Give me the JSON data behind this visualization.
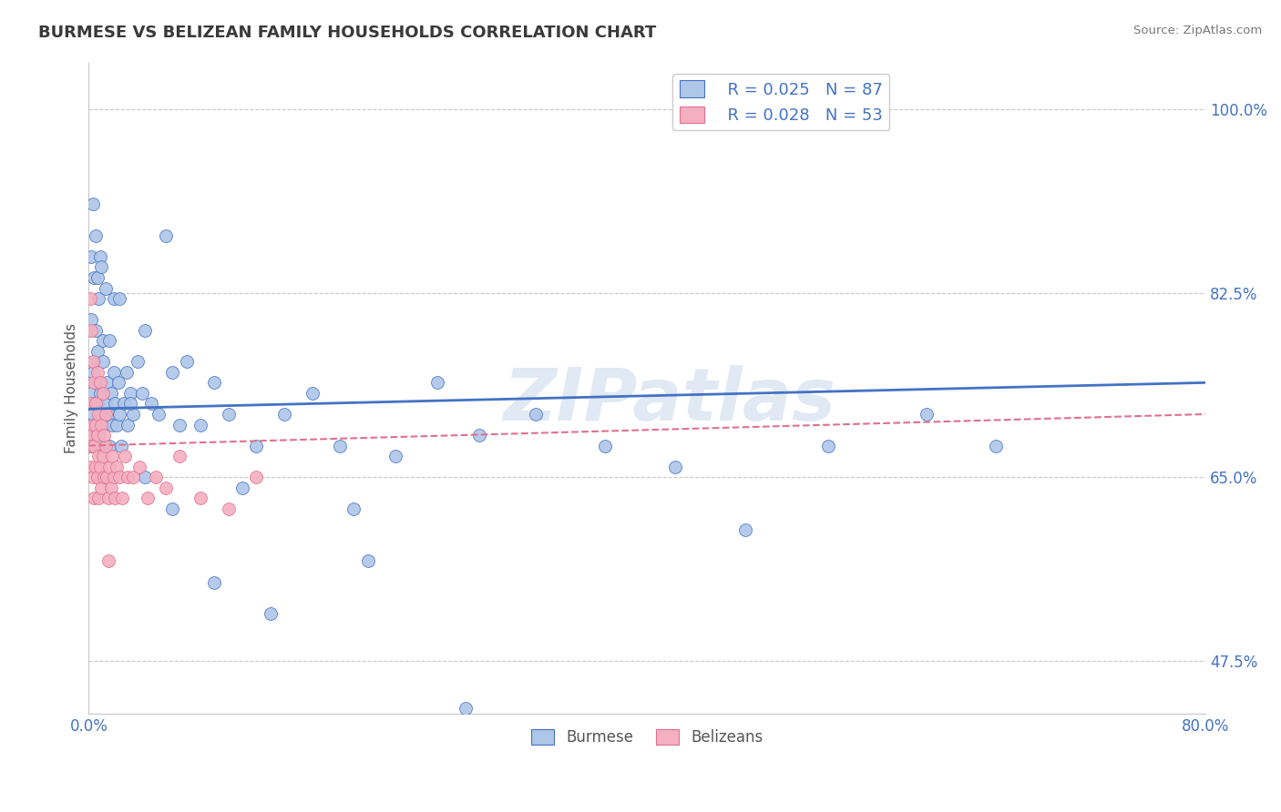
{
  "title": "BURMESE VS BELIZEAN FAMILY HOUSEHOLDS CORRELATION CHART",
  "source": "Source: ZipAtlas.com",
  "ylabel": "Family Households",
  "xlim": [
    0.0,
    0.8
  ],
  "ylim": [
    0.425,
    1.045
  ],
  "ytick_labels": [
    "47.5%",
    "65.0%",
    "82.5%",
    "100.0%"
  ],
  "yticks": [
    0.475,
    0.65,
    0.825,
    1.0
  ],
  "legend_R_burmese": "R = 0.025",
  "legend_N_burmese": "N = 87",
  "legend_R_belizean": "R = 0.028",
  "legend_N_belizean": "N = 53",
  "burmese_color": "#aec6e8",
  "belizean_color": "#f4afc0",
  "trendline_burmese_color": "#4472c4",
  "trendline_belizean_color": "#e07090",
  "watermark": "ZIPatlas",
  "burmese_x": [
    0.001,
    0.001,
    0.002,
    0.002,
    0.003,
    0.003,
    0.003,
    0.004,
    0.004,
    0.005,
    0.005,
    0.005,
    0.006,
    0.006,
    0.007,
    0.007,
    0.008,
    0.008,
    0.009,
    0.01,
    0.01,
    0.011,
    0.012,
    0.013,
    0.014,
    0.015,
    0.016,
    0.017,
    0.018,
    0.019,
    0.02,
    0.021,
    0.022,
    0.023,
    0.025,
    0.027,
    0.028,
    0.03,
    0.032,
    0.035,
    0.038,
    0.04,
    0.045,
    0.05,
    0.055,
    0.06,
    0.065,
    0.07,
    0.08,
    0.09,
    0.1,
    0.11,
    0.12,
    0.14,
    0.16,
    0.18,
    0.2,
    0.22,
    0.25,
    0.28,
    0.32,
    0.37,
    0.42,
    0.47,
    0.53,
    0.6,
    0.65,
    0.002,
    0.003,
    0.004,
    0.005,
    0.006,
    0.007,
    0.008,
    0.009,
    0.01,
    0.012,
    0.015,
    0.018,
    0.022,
    0.03,
    0.04,
    0.06,
    0.09,
    0.13,
    0.19,
    0.27
  ],
  "burmese_y": [
    0.7,
    0.68,
    0.73,
    0.8,
    0.75,
    0.71,
    0.68,
    0.76,
    0.72,
    0.79,
    0.74,
    0.69,
    0.77,
    0.72,
    0.74,
    0.69,
    0.73,
    0.68,
    0.71,
    0.78,
    0.73,
    0.7,
    0.72,
    0.74,
    0.71,
    0.68,
    0.73,
    0.7,
    0.75,
    0.72,
    0.7,
    0.74,
    0.71,
    0.68,
    0.72,
    0.75,
    0.7,
    0.73,
    0.71,
    0.76,
    0.73,
    0.79,
    0.72,
    0.71,
    0.88,
    0.75,
    0.7,
    0.76,
    0.7,
    0.74,
    0.71,
    0.64,
    0.68,
    0.71,
    0.73,
    0.68,
    0.57,
    0.67,
    0.74,
    0.69,
    0.71,
    0.68,
    0.66,
    0.6,
    0.68,
    0.71,
    0.68,
    0.86,
    0.91,
    0.84,
    0.88,
    0.84,
    0.82,
    0.86,
    0.85,
    0.76,
    0.83,
    0.78,
    0.82,
    0.82,
    0.72,
    0.65,
    0.62,
    0.55,
    0.52,
    0.62,
    0.43
  ],
  "belizean_x": [
    0.001,
    0.001,
    0.002,
    0.002,
    0.003,
    0.003,
    0.004,
    0.004,
    0.005,
    0.005,
    0.006,
    0.006,
    0.007,
    0.007,
    0.008,
    0.009,
    0.01,
    0.011,
    0.012,
    0.013,
    0.014,
    0.015,
    0.016,
    0.017,
    0.018,
    0.019,
    0.02,
    0.022,
    0.024,
    0.026,
    0.028,
    0.032,
    0.036,
    0.042,
    0.048,
    0.055,
    0.065,
    0.08,
    0.1,
    0.12,
    0.001,
    0.002,
    0.003,
    0.004,
    0.005,
    0.006,
    0.007,
    0.008,
    0.009,
    0.01,
    0.011,
    0.012,
    0.014
  ],
  "belizean_y": [
    0.69,
    0.66,
    0.72,
    0.68,
    0.7,
    0.65,
    0.68,
    0.63,
    0.7,
    0.66,
    0.69,
    0.65,
    0.67,
    0.63,
    0.66,
    0.64,
    0.67,
    0.65,
    0.68,
    0.65,
    0.63,
    0.66,
    0.64,
    0.67,
    0.65,
    0.63,
    0.66,
    0.65,
    0.63,
    0.67,
    0.65,
    0.65,
    0.66,
    0.63,
    0.65,
    0.64,
    0.67,
    0.63,
    0.62,
    0.65,
    0.82,
    0.79,
    0.76,
    0.74,
    0.72,
    0.75,
    0.71,
    0.74,
    0.7,
    0.73,
    0.69,
    0.71,
    0.57
  ]
}
